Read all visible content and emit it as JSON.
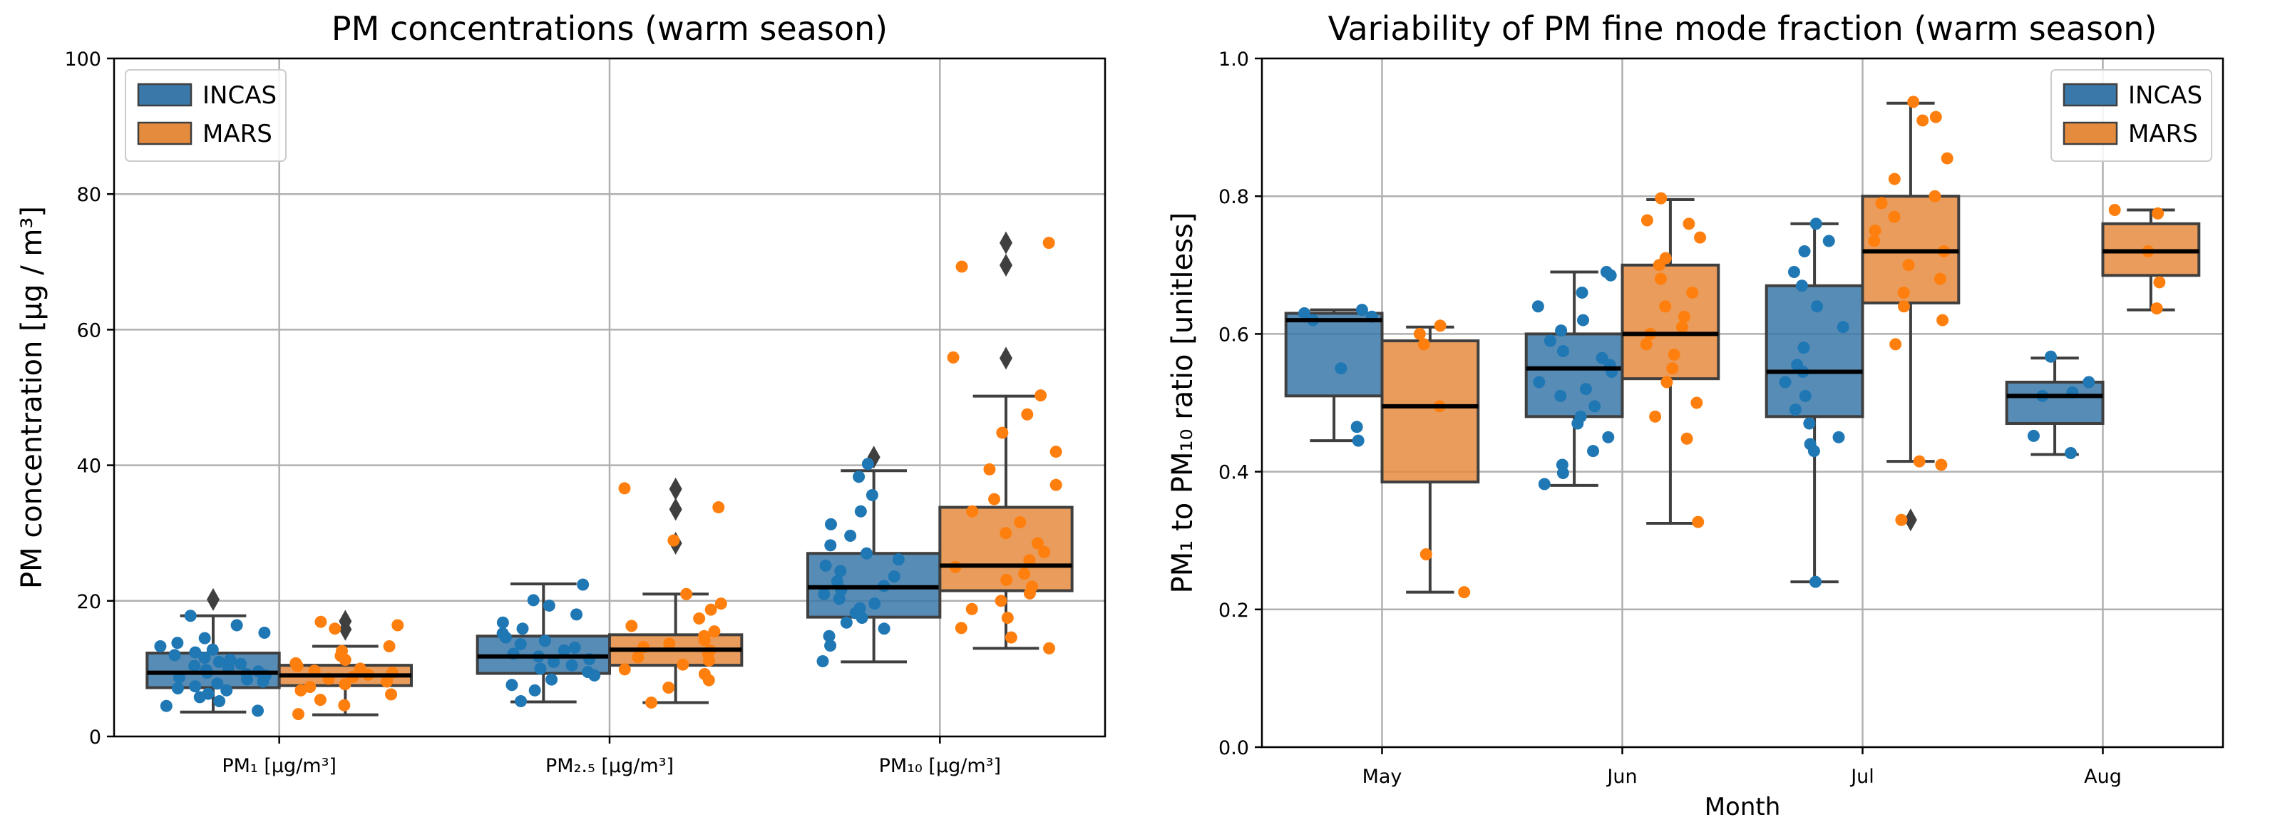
{
  "colors": {
    "incas": "#1f77b4",
    "mars": "#ff7f0e",
    "incas_box": "#3a78a9",
    "mars_box": "#e58b3e"
  },
  "chart_data": [
    {
      "type": "box",
      "title": "PM concentrations (warm season)",
      "xlabel": "",
      "ylabel": "PM concentration [μg / m³]",
      "ylim": [
        0,
        100
      ],
      "yticks": [
        0,
        20,
        40,
        60,
        80,
        100
      ],
      "categories": [
        "PM₁ [μg/m³]",
        "PM₂.₅ [μg/m³]",
        "PM₁₀ [μg/m³]"
      ],
      "legend": [
        "INCAS",
        "MARS"
      ],
      "legend_position": "top-left",
      "grid": true,
      "series": [
        {
          "name": "INCAS",
          "boxes": [
            {
              "q1": 7.2,
              "median": 9.4,
              "q3": 12.3,
              "whisker_low": 3.6,
              "whisker_high": 17.8,
              "outliers": [
                20.2
              ],
              "points": [
                3.8,
                4.5,
                5.2,
                5.8,
                6.3,
                6.8,
                7.1,
                7.4,
                7.8,
                8.1,
                8.4,
                8.7,
                9.0,
                9.2,
                9.4,
                9.6,
                9.8,
                10.1,
                10.4,
                10.7,
                11.0,
                11.3,
                11.6,
                12.0,
                12.4,
                12.8,
                13.3,
                13.8,
                14.5,
                15.3,
                16.4,
                17.8
              ]
            },
            {
              "q1": 9.3,
              "median": 11.8,
              "q3": 14.8,
              "whisker_low": 5.1,
              "whisker_high": 22.5,
              "outliers": [],
              "points": [
                5.2,
                6.8,
                7.6,
                8.4,
                9.0,
                9.5,
                10.0,
                10.5,
                11.0,
                11.4,
                11.8,
                12.2,
                12.7,
                13.1,
                13.6,
                14.1,
                14.6,
                15.2,
                15.9,
                16.8,
                18.0,
                19.3,
                20.1,
                22.4
              ]
            },
            {
              "q1": 17.6,
              "median": 22.0,
              "q3": 27.0,
              "whisker_low": 11.0,
              "whisker_high": 39.2,
              "outliers": [
                41.2
              ],
              "points": [
                11.1,
                13.4,
                14.8,
                15.9,
                16.8,
                17.5,
                18.2,
                18.9,
                19.6,
                20.3,
                21.0,
                21.6,
                22.2,
                22.9,
                23.6,
                24.4,
                25.2,
                26.1,
                27.0,
                28.2,
                29.6,
                31.3,
                33.2,
                35.6,
                38.3,
                40.2
              ]
            }
          ]
        },
        {
          "name": "MARS",
          "boxes": [
            {
              "q1": 7.5,
              "median": 9.0,
              "q3": 10.5,
              "whisker_low": 3.2,
              "whisker_high": 13.3,
              "outliers": [
                15.8,
                17.0
              ],
              "points": [
                3.3,
                4.6,
                5.4,
                6.2,
                6.8,
                7.3,
                7.7,
                8.1,
                8.5,
                8.8,
                9.1,
                9.4,
                9.7,
                10.0,
                10.4,
                10.8,
                11.3,
                11.9,
                12.6,
                13.3,
                15.9,
                16.4,
                16.9
              ]
            },
            {
              "q1": 10.5,
              "median": 12.8,
              "q3": 15.0,
              "whisker_low": 5.0,
              "whisker_high": 21.0,
              "outliers": [
                28.5,
                33.5,
                36.5
              ],
              "points": [
                5.0,
                7.2,
                8.3,
                9.2,
                9.9,
                10.6,
                11.2,
                11.7,
                12.2,
                12.7,
                13.2,
                13.7,
                14.2,
                14.8,
                15.5,
                16.3,
                17.4,
                18.7,
                19.6,
                21.0,
                28.9,
                33.8,
                36.6
              ]
            },
            {
              "q1": 21.5,
              "median": 25.2,
              "q3": 33.8,
              "whisker_low": 13.0,
              "whisker_high": 50.2,
              "outliers": [
                55.8,
                69.5,
                72.8
              ],
              "points": [
                13.0,
                14.6,
                16.0,
                17.5,
                18.8,
                20.0,
                21.1,
                22.1,
                23.1,
                24.0,
                25.0,
                26.0,
                27.2,
                28.5,
                30.0,
                31.6,
                33.2,
                35.0,
                37.1,
                39.4,
                42.0,
                44.8,
                47.5,
                50.3,
                55.9,
                69.3,
                72.8
              ]
            }
          ]
        }
      ]
    },
    {
      "type": "box",
      "title": "Variability of PM fine mode fraction (warm season)",
      "xlabel": "Month",
      "ylabel": "PM₁ to PM₁₀ ratio [unitless]",
      "ylim": [
        0,
        1
      ],
      "yticks": [
        0.0,
        0.2,
        0.4,
        0.6,
        0.8,
        1.0
      ],
      "categories": [
        "May",
        "Jun",
        "Jul",
        "Aug"
      ],
      "legend": [
        "INCAS",
        "MARS"
      ],
      "legend_position": "top-right",
      "grid": true,
      "series": [
        {
          "name": "INCAS",
          "boxes": [
            {
              "q1": 0.51,
              "median": 0.62,
              "q3": 0.63,
              "whisker_low": 0.445,
              "whisker_high": 0.635,
              "outliers": [],
              "points": [
                0.445,
                0.465,
                0.55,
                0.62,
                0.625,
                0.63,
                0.635
              ]
            },
            {
              "q1": 0.48,
              "median": 0.55,
              "q3": 0.6,
              "whisker_low": 0.38,
              "whisker_high": 0.69,
              "outliers": [],
              "points": [
                0.382,
                0.398,
                0.41,
                0.43,
                0.45,
                0.47,
                0.48,
                0.495,
                0.51,
                0.52,
                0.53,
                0.545,
                0.555,
                0.565,
                0.575,
                0.59,
                0.605,
                0.62,
                0.64,
                0.66,
                0.685,
                0.69
              ]
            },
            {
              "q1": 0.48,
              "median": 0.545,
              "q3": 0.67,
              "whisker_low": 0.24,
              "whisker_high": 0.76,
              "outliers": [],
              "points": [
                0.24,
                0.43,
                0.44,
                0.45,
                0.47,
                0.49,
                0.51,
                0.53,
                0.545,
                0.555,
                0.58,
                0.61,
                0.64,
                0.67,
                0.69,
                0.72,
                0.735,
                0.76
              ]
            },
            {
              "q1": 0.47,
              "median": 0.51,
              "q3": 0.53,
              "whisker_low": 0.425,
              "whisker_high": 0.565,
              "outliers": [],
              "points": [
                0.427,
                0.452,
                0.51,
                0.515,
                0.53,
                0.567
              ]
            }
          ]
        },
        {
          "name": "MARS",
          "boxes": [
            {
              "q1": 0.385,
              "median": 0.495,
              "q3": 0.59,
              "whisker_low": 0.225,
              "whisker_high": 0.61,
              "outliers": [],
              "points": [
                0.225,
                0.28,
                0.495,
                0.585,
                0.6,
                0.612
              ]
            },
            {
              "q1": 0.535,
              "median": 0.6,
              "q3": 0.7,
              "whisker_low": 0.325,
              "whisker_high": 0.795,
              "outliers": [],
              "points": [
                0.327,
                0.448,
                0.48,
                0.5,
                0.53,
                0.55,
                0.57,
                0.585,
                0.6,
                0.61,
                0.625,
                0.64,
                0.66,
                0.68,
                0.7,
                0.71,
                0.74,
                0.76,
                0.765,
                0.797
              ]
            },
            {
              "q1": 0.645,
              "median": 0.72,
              "q3": 0.8,
              "whisker_low": 0.415,
              "whisker_high": 0.935,
              "outliers": [
                0.33
              ],
              "points": [
                0.33,
                0.41,
                0.415,
                0.585,
                0.62,
                0.64,
                0.66,
                0.68,
                0.7,
                0.72,
                0.735,
                0.75,
                0.77,
                0.79,
                0.8,
                0.825,
                0.855,
                0.91,
                0.915,
                0.937
              ]
            },
            {
              "q1": 0.685,
              "median": 0.72,
              "q3": 0.76,
              "whisker_low": 0.635,
              "whisker_high": 0.78,
              "outliers": [],
              "points": [
                0.637,
                0.675,
                0.72,
                0.775,
                0.78
              ]
            }
          ]
        }
      ]
    }
  ]
}
